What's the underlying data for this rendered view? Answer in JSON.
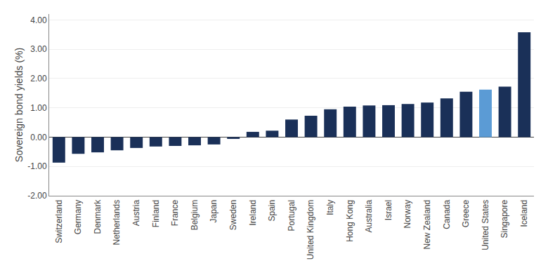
{
  "chart_data": {
    "type": "bar",
    "categories": [
      "Switzerland",
      "Germany",
      "Denmark",
      "Netherlands",
      "Austria",
      "Finland",
      "France",
      "Belgium",
      "Japan",
      "Sweden",
      "Ireland",
      "Spain",
      "Portugal",
      "United Kingdom",
      "Italy",
      "Hong Kong",
      "Australia",
      "Israel",
      "Norway",
      "New Zealand",
      "Canada",
      "Greece",
      "United States",
      "Singapore",
      "Iceland"
    ],
    "values": [
      -0.87,
      -0.57,
      -0.52,
      -0.45,
      -0.37,
      -0.32,
      -0.3,
      -0.28,
      -0.25,
      -0.06,
      0.18,
      0.22,
      0.6,
      0.73,
      0.95,
      1.04,
      1.08,
      1.09,
      1.13,
      1.18,
      1.32,
      1.55,
      1.62,
      1.72,
      3.58
    ],
    "colors": [
      "#1a3058",
      "#1a3058",
      "#1a3058",
      "#1a3058",
      "#1a3058",
      "#1a3058",
      "#1a3058",
      "#1a3058",
      "#1a3058",
      "#1a3058",
      "#1a3058",
      "#1a3058",
      "#1a3058",
      "#1a3058",
      "#1a3058",
      "#1a3058",
      "#1a3058",
      "#1a3058",
      "#1a3058",
      "#1a3058",
      "#1a3058",
      "#1a3058",
      "#5b9bd5",
      "#1a3058",
      "#1a3058"
    ],
    "ylabel": "Sovereign bond yields (%)",
    "ylim": [
      -2.0,
      4.2
    ],
    "yticks": [
      {
        "value": -2.0,
        "label": "-2.00"
      },
      {
        "value": -1.0,
        "label": "-1.00"
      },
      {
        "value": 0.0,
        "label": "0.00"
      },
      {
        "value": 1.0,
        "label": "1.00"
      },
      {
        "value": 2.0,
        "label": "2.00"
      },
      {
        "value": 3.0,
        "label": "3.00"
      },
      {
        "value": 4.0,
        "label": "4.00"
      }
    ],
    "grid": true
  }
}
